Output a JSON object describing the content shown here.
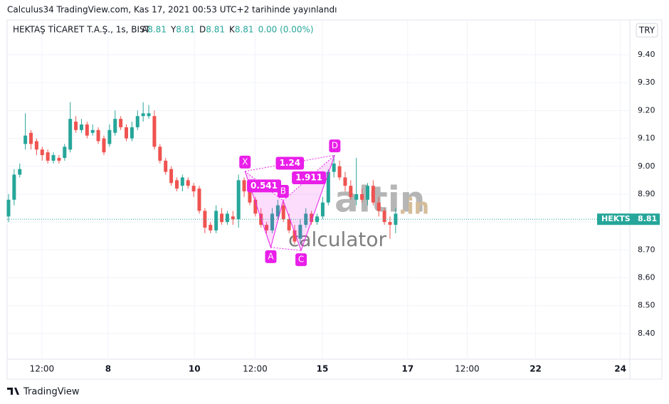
{
  "header": {
    "published": "Calculus34 TradingView.com, Kas 17, 2021 00:53 UTC+2 tarihinde yayınlandı",
    "symbol": "HEKTAŞ TİCARET T.A.Ş., 1s, BIST",
    "ohlc_labels": [
      "A",
      "Y",
      "D",
      "K"
    ],
    "ohlc_values": [
      8.81,
      8.81,
      8.81,
      8.81
    ],
    "change": "0.00 (0.00%)",
    "currency": "TRY"
  },
  "chart_data": {
    "type": "candlestick",
    "up_color": "#26a69a",
    "down_color": "#ef5350",
    "grid": true,
    "open": [
      8.82,
      8.88,
      8.97,
      9.08,
      9.12,
      9.09,
      9.06,
      9.05,
      9.02,
      9.03,
      9.03,
      9.06,
      9.16,
      9.13,
      9.15,
      9.12,
      9.13,
      9.1,
      9.08,
      9.12,
      9.17,
      9.14,
      9.1,
      9.14,
      9.18,
      9.18,
      9.18,
      9.07,
      9.02,
      8.99,
      8.95,
      8.93,
      8.95,
      8.93,
      8.92,
      8.84,
      8.79,
      8.77,
      8.83,
      8.8,
      8.82,
      8.81,
      8.95,
      8.91,
      8.88,
      8.83,
      8.79,
      8.77,
      8.82,
      8.86,
      8.81,
      8.77,
      8.74,
      8.79,
      8.83,
      8.8,
      8.82,
      8.87,
      8.98,
      9.0,
      8.96,
      8.93,
      8.88,
      8.9,
      8.88,
      8.93,
      8.87,
      8.84,
      8.8,
      8.79
    ],
    "high": [
      8.9,
      8.99,
      9.01,
      9.19,
      9.13,
      9.1,
      9.07,
      9.06,
      9.05,
      9.04,
      9.08,
      9.23,
      9.18,
      9.17,
      9.16,
      9.15,
      9.14,
      9.11,
      9.15,
      9.2,
      9.18,
      9.15,
      9.16,
      9.2,
      9.23,
      9.22,
      9.2,
      9.08,
      9.03,
      9.0,
      8.96,
      8.97,
      8.96,
      8.94,
      8.93,
      8.85,
      8.8,
      8.86,
      8.85,
      8.84,
      8.84,
      8.97,
      8.96,
      8.92,
      8.89,
      8.85,
      8.8,
      8.85,
      8.88,
      8.87,
      8.83,
      8.79,
      8.81,
      8.85,
      8.84,
      8.83,
      8.89,
      8.99,
      9.04,
      9.02,
      8.98,
      8.95,
      9.03,
      8.92,
      8.94,
      8.95,
      8.89,
      8.85,
      8.82,
      8.85
    ],
    "low": [
      8.8,
      8.86,
      8.96,
      9.06,
      9.06,
      9.04,
      9.02,
      9.01,
      9.01,
      9.01,
      9.02,
      9.05,
      9.12,
      9.12,
      9.1,
      9.11,
      9.08,
      9.04,
      9.07,
      9.11,
      9.13,
      9.09,
      9.09,
      9.13,
      9.16,
      9.17,
      9.06,
      9.01,
      8.97,
      8.93,
      8.91,
      8.91,
      8.92,
      8.89,
      8.83,
      8.76,
      8.76,
      8.76,
      8.79,
      8.79,
      8.79,
      8.78,
      8.89,
      8.86,
      8.82,
      8.78,
      8.76,
      8.76,
      8.81,
      8.8,
      8.76,
      8.72,
      8.72,
      8.78,
      8.79,
      8.79,
      8.81,
      8.86,
      8.96,
      8.95,
      8.91,
      8.88,
      8.86,
      8.87,
      8.86,
      8.86,
      8.82,
      8.79,
      8.74,
      8.76
    ],
    "close": [
      8.88,
      8.97,
      8.99,
      9.11,
      9.08,
      9.06,
      9.04,
      9.02,
      9.04,
      9.02,
      9.07,
      9.17,
      9.13,
      9.15,
      9.11,
      9.13,
      9.09,
      9.05,
      9.13,
      9.17,
      9.14,
      9.1,
      9.14,
      9.18,
      9.19,
      9.19,
      9.07,
      9.02,
      8.98,
      8.94,
      8.92,
      8.96,
      8.93,
      8.91,
      8.84,
      8.78,
      8.77,
      8.84,
      8.8,
      8.83,
      8.81,
      8.95,
      8.91,
      8.87,
      8.83,
      8.79,
      8.77,
      8.83,
      8.86,
      8.81,
      8.77,
      8.73,
      8.79,
      8.83,
      8.8,
      8.82,
      8.87,
      8.98,
      9.01,
      8.96,
      8.93,
      8.89,
      8.9,
      8.88,
      8.93,
      8.87,
      8.84,
      8.8,
      8.79,
      8.83
    ],
    "xlim": [
      -0.25,
      110.75
    ],
    "xticks": [
      {
        "value": 5.95,
        "label": "12:00"
      },
      {
        "value": 17.75,
        "label": "8"
      },
      {
        "value": 33.15,
        "label": "10"
      },
      {
        "value": 43.95,
        "label": "12:00"
      },
      {
        "value": 55.95,
        "label": "15"
      },
      {
        "value": 71.15,
        "label": "17"
      },
      {
        "value": 81.75,
        "label": "12:00"
      },
      {
        "value": 93.95,
        "label": "22"
      },
      {
        "value": 109.05,
        "label": "24"
      }
    ],
    "ylim": [
      8.308,
      9.525
    ],
    "yticks": [
      {
        "value": 8.4,
        "label": "8.40"
      },
      {
        "value": 8.5,
        "label": "8.50"
      },
      {
        "value": 8.6,
        "label": "8.60"
      },
      {
        "value": 8.7,
        "label": "8.70"
      },
      {
        "value": 8.8,
        "label": "8.80"
      },
      {
        "value": 8.9,
        "label": "8.90"
      },
      {
        "value": 9.0,
        "label": "9.00"
      },
      {
        "value": 9.1,
        "label": "9.10"
      },
      {
        "value": 9.2,
        "label": "9.20"
      },
      {
        "value": 9.3,
        "label": "9.30"
      },
      {
        "value": 9.4,
        "label": "9.40"
      }
    ],
    "last_price": {
      "symbol": "HEKTS",
      "value": 8.81
    },
    "pattern": {
      "color": "#e91ee9",
      "points": [
        {
          "label": "X",
          "x": 42.15,
          "y": 8.982
        },
        {
          "label": "A",
          "x": 46.75,
          "y": 8.709
        },
        {
          "label": "B",
          "x": 48.95,
          "y": 8.877
        },
        {
          "label": "C",
          "x": 52.15,
          "y": 8.698
        },
        {
          "label": "D",
          "x": 58.15,
          "y": 9.04
        }
      ],
      "ratios": {
        "XB": 0.541,
        "XD": 1.24,
        "BD": 1.911
      }
    },
    "watermark": {
      "brand": "altin",
      "tld": ".in",
      "sub": "calculator"
    }
  },
  "footer": {
    "brand": "TradingView"
  }
}
